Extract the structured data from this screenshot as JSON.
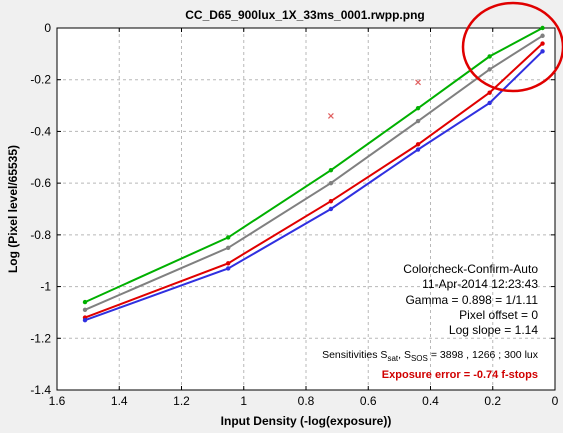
{
  "chart_data": {
    "type": "line",
    "title": "CC_D65_900lux_1X_33ms_0001.rwpp.png",
    "xlabel": "Input Density (-log(exposure))",
    "ylabel": "Log (Pixel level/65535)",
    "xlim": [
      1.6,
      0
    ],
    "ylim": [
      -1.4,
      0
    ],
    "x_ticks": [
      "1.6",
      "1.4",
      "1.2",
      "1",
      "0.8",
      "0.6",
      "0.4",
      "0.2",
      "0"
    ],
    "y_ticks": [
      "0",
      "-0.2",
      "-0.4",
      "-0.6",
      "-0.8",
      "-1",
      "-1.2",
      "-1.4"
    ],
    "grid": true,
    "series": [
      {
        "color": "#00b000",
        "x": [
          1.51,
          1.05,
          0.72,
          0.44,
          0.21,
          0.04
        ],
        "y": [
          -1.06,
          -0.81,
          -0.55,
          -0.31,
          -0.11,
          0.0
        ]
      },
      {
        "color": "#808080",
        "x": [
          1.51,
          1.05,
          0.72,
          0.44,
          0.21,
          0.04
        ],
        "y": [
          -1.09,
          -0.85,
          -0.6,
          -0.36,
          -0.16,
          -0.03
        ]
      },
      {
        "color": "#e00000",
        "x": [
          1.51,
          1.05,
          0.72,
          0.44,
          0.21,
          0.04
        ],
        "y": [
          -1.12,
          -0.91,
          -0.67,
          -0.45,
          -0.25,
          -0.06
        ]
      },
      {
        "color": "#3030e0",
        "x": [
          1.51,
          1.05,
          0.72,
          0.44,
          0.21,
          0.04
        ],
        "y": [
          -1.13,
          -0.93,
          -0.7,
          -0.47,
          -0.29,
          -0.09
        ]
      }
    ],
    "outliers": [
      {
        "x": 0.72,
        "y": -0.34
      },
      {
        "x": 0.44,
        "y": -0.21
      }
    ],
    "annotations": {
      "line1": "Colorcheck-Confirm-Auto",
      "line2": "11-Apr-2014 12:23:43",
      "line3": "Gamma = 0.898 = 1/1.11",
      "line4": "Pixel offset = 0",
      "line5": "Log slope = 1.14",
      "sens_prefix": "Sensitivities S",
      "sens_sub1": "sat",
      "sens_mid": ", S",
      "sens_sub2": "SOS",
      "sens_values": "= 3898 ,  1266 ;  300 lux",
      "exposure_error": "Exposure error = -0.74 f-stops"
    },
    "highlight_color": "#e00000"
  }
}
